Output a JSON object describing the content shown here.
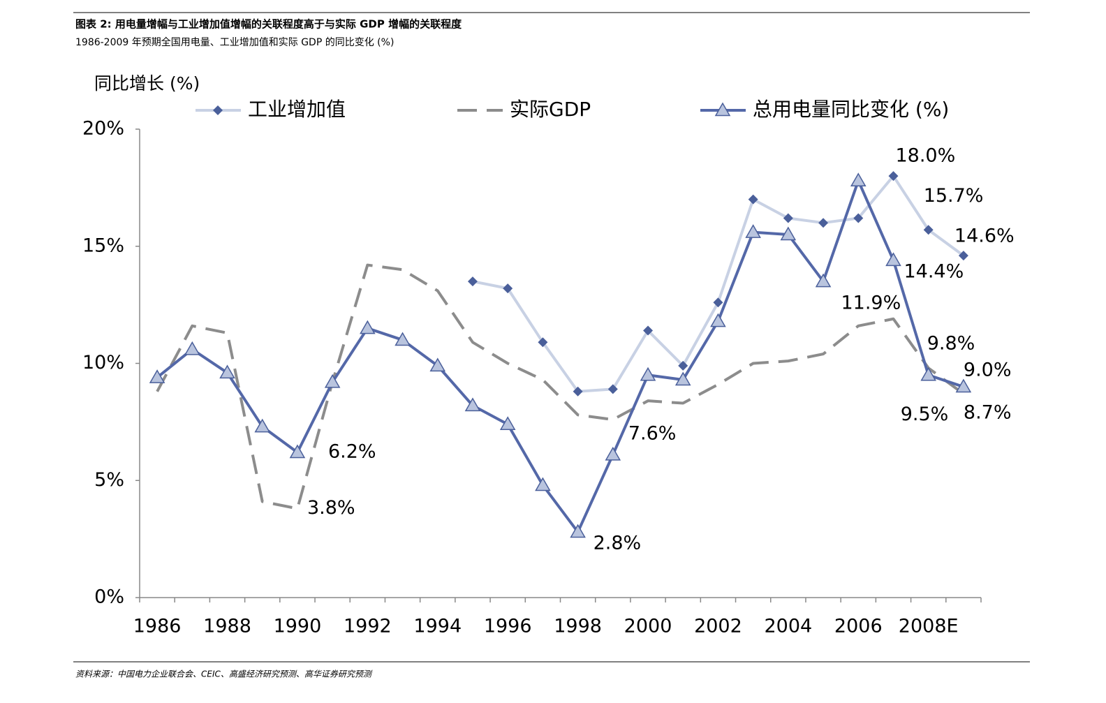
{
  "chart_data": {
    "type": "line",
    "title": "图表 2:    用电量增幅与工业增加值增幅的关联程度高于与实际 GDP 增幅的关联程度",
    "subtitle": "1986-2009 年预期全国用电量、工业增加值和实际 GDP 的同比变化 (%)",
    "ylabel": "同比增长 (%)",
    "source": "资料来源：中国电力企业联合会、CEIC、高盛经济研究预测、高华证券研究预测",
    "categories": [
      "1986",
      null,
      "1988",
      null,
      "1990",
      null,
      "1992",
      null,
      "1994",
      null,
      "1996",
      null,
      "1998",
      null,
      "2000",
      null,
      "2002",
      null,
      "2004",
      null,
      "2006",
      null,
      "2008E",
      null
    ],
    "ylim": [
      0,
      20
    ],
    "yticks": [
      {
        "value": 0,
        "label": "0%"
      },
      {
        "value": 5,
        "label": "5%"
      },
      {
        "value": 10,
        "label": "10%"
      },
      {
        "value": 15,
        "label": "15%"
      },
      {
        "value": 20,
        "label": "20%"
      }
    ],
    "grid": false,
    "legend": "top",
    "series": [
      {
        "name": "工业增加值",
        "color": "#c8d1e4",
        "marker_color": "#4a5f9a",
        "marker": "diamond",
        "dash": false,
        "values": [
          null,
          null,
          null,
          null,
          null,
          null,
          null,
          null,
          null,
          13.5,
          13.2,
          10.9,
          8.8,
          8.9,
          11.4,
          9.9,
          12.6,
          17.0,
          16.2,
          16.0,
          16.2,
          18.0,
          15.7,
          14.6
        ],
        "value_labels": [
          null,
          null,
          null,
          null,
          null,
          null,
          null,
          null,
          null,
          null,
          null,
          null,
          null,
          null,
          null,
          null,
          null,
          null,
          null,
          null,
          null,
          "18.0%",
          "15.7%",
          "14.6%"
        ]
      },
      {
        "name": "实际GDP",
        "color": "#8c8c8c",
        "marker": "none",
        "dash": true,
        "values": [
          8.8,
          11.6,
          11.3,
          4.1,
          3.8,
          9.2,
          14.2,
          14.0,
          13.1,
          10.9,
          10.0,
          9.3,
          7.8,
          7.6,
          8.4,
          8.3,
          9.1,
          10.0,
          10.1,
          10.4,
          11.6,
          11.9,
          9.8,
          8.7
        ],
        "value_labels": [
          null,
          null,
          null,
          null,
          "3.8%",
          null,
          null,
          null,
          null,
          null,
          null,
          null,
          null,
          "7.6%",
          null,
          null,
          null,
          null,
          null,
          null,
          null,
          "11.9%",
          "9.8%",
          "8.7%"
        ]
      },
      {
        "name": "总用电量同比变化 (%)",
        "color": "#5468a8",
        "marker_color": "#b9c4de",
        "marker": "triangle",
        "dash": false,
        "values": [
          9.4,
          10.6,
          9.6,
          7.3,
          6.2,
          9.2,
          11.5,
          11.0,
          9.9,
          8.2,
          7.4,
          4.8,
          2.8,
          6.1,
          9.5,
          9.3,
          11.8,
          15.6,
          15.5,
          13.5,
          17.8,
          14.4,
          9.5,
          9.0
        ],
        "value_labels": [
          null,
          null,
          null,
          null,
          "6.2%",
          null,
          null,
          null,
          null,
          null,
          null,
          null,
          "2.8%",
          null,
          null,
          null,
          null,
          null,
          null,
          null,
          null,
          "14.4%",
          "9.5%",
          "9.0%"
        ]
      }
    ]
  }
}
